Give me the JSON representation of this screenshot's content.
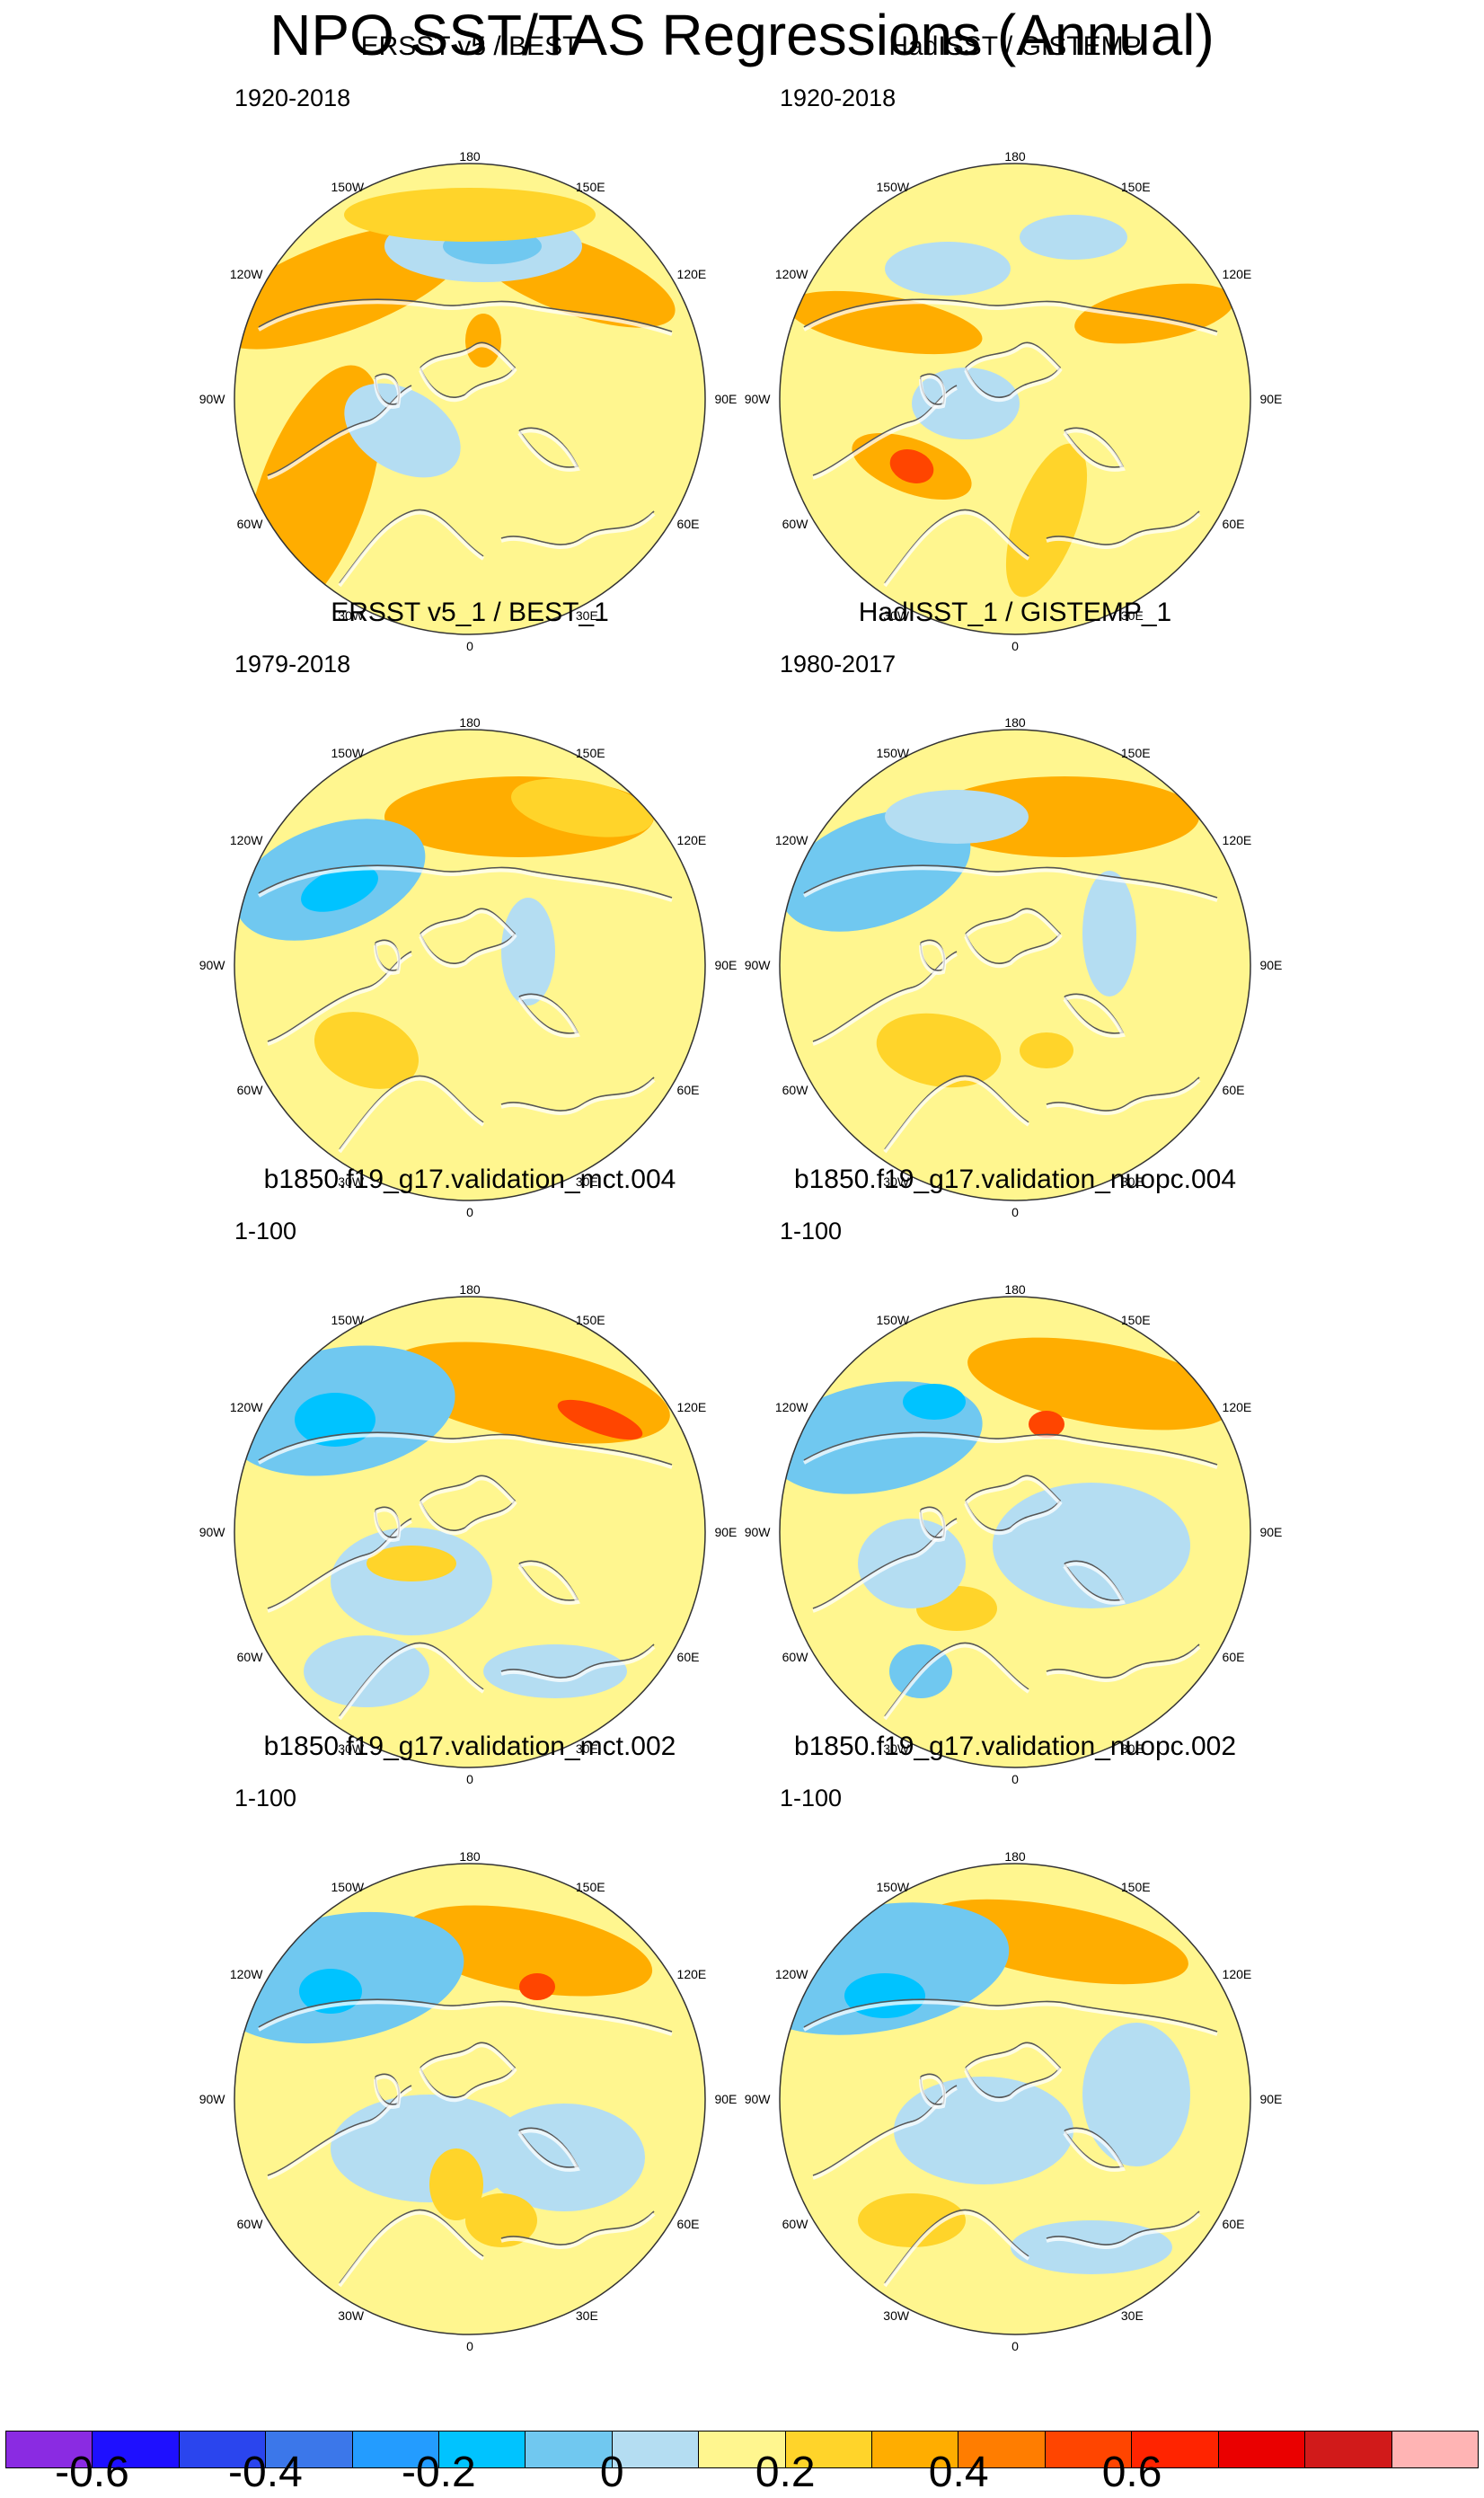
{
  "title": "NPO SST/TAS Regressions (Annual)",
  "panels": [
    {
      "title": "ERSST v5 / BEST",
      "period": "1920-2018"
    },
    {
      "title": "HadISST / GISTEMP",
      "period": "1920-2018"
    },
    {
      "title": "ERSST v5_1 / BEST_1",
      "period": "1979-2018"
    },
    {
      "title": "HadISST_1 / GISTEMP_1",
      "period": "1980-2017"
    },
    {
      "title": "b1850.f19_g17.validation_mct.004",
      "period": "1-100"
    },
    {
      "title": "b1850.f19_g17.validation_nuopc.004",
      "period": "1-100"
    },
    {
      "title": "b1850.f19_g17.validation_mct.002",
      "period": "1-100"
    },
    {
      "title": "b1850.f19_g17.validation_nuopc.002",
      "period": "1-100"
    }
  ],
  "lon_labels": {
    "top": "180",
    "upper_left": "150W",
    "upper_right": "150E",
    "left_high": "120W",
    "right_high": "120E",
    "left": "90W",
    "right": "90E",
    "left_low": "60W",
    "right_low": "60E",
    "lower_left": "30W",
    "lower_right": "30E",
    "bottom": "0"
  },
  "colorbar": {
    "colors": [
      "#8a2be2",
      "#1e10ff",
      "#2a45ee",
      "#3b77ea",
      "#239cff",
      "#00c3ff",
      "#70c8f0",
      "#b4ddf2",
      "#fff68f",
      "#ffd42a",
      "#ffad00",
      "#ff7d00",
      "#ff4500",
      "#ff2400",
      "#ea0000",
      "#d11a1a",
      "#ffb4b4"
    ],
    "ticks": [
      "-0.6",
      "-0.4",
      "-0.2",
      "0",
      "0.2",
      "0.4",
      "0.6"
    ]
  }
}
